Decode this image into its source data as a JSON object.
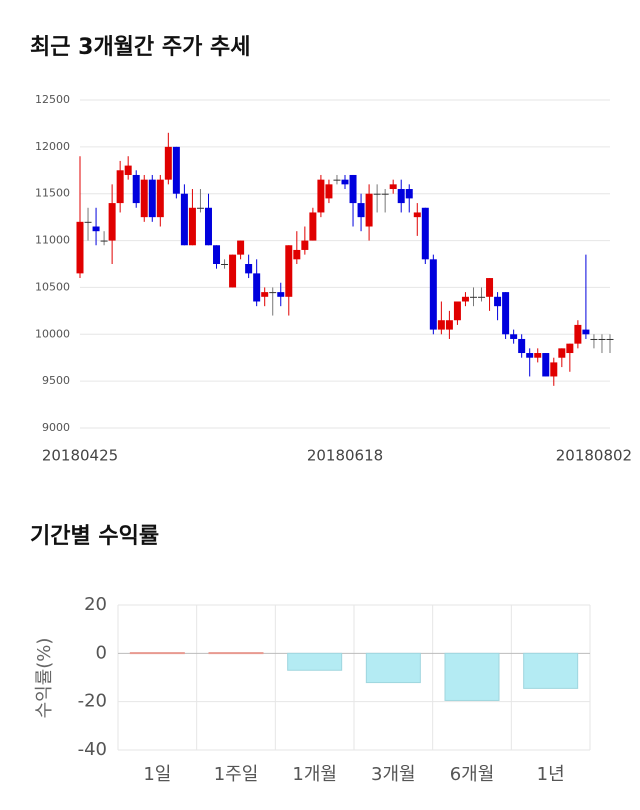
{
  "chart_data": [
    {
      "type": "candlestick",
      "title": "최근 3개월간 주가 추세",
      "categories": [
        "20180425",
        null,
        null,
        null,
        null,
        null,
        null,
        null,
        null,
        null,
        null,
        null,
        null,
        null,
        null,
        null,
        null,
        null,
        null,
        null,
        null,
        null,
        null,
        null,
        null,
        null,
        null,
        null,
        null,
        null,
        null,
        null,
        null,
        "20180618",
        null,
        null,
        null,
        null,
        null,
        null,
        null,
        null,
        null,
        null,
        null,
        null,
        null,
        null,
        null,
        null,
        null,
        null,
        null,
        null,
        null,
        null,
        null,
        null,
        null,
        null,
        null,
        null,
        null,
        null,
        "20180802",
        null,
        null
      ],
      "open": [
        10650,
        11200,
        11150,
        11000,
        11000,
        11400,
        11700,
        11700,
        11250,
        11650,
        11250,
        11650,
        12000,
        11500,
        10950,
        11350,
        11350,
        10950,
        10750,
        10500,
        10850,
        10750,
        10650,
        10400,
        10450,
        10450,
        10400,
        10800,
        10900,
        11000,
        11300,
        11450,
        11650,
        11650,
        11700,
        11400,
        11150,
        11500,
        11500,
        11550,
        11550,
        11550,
        11250,
        11350,
        10800,
        10050,
        10050,
        10150,
        10350,
        10400,
        10400,
        10400,
        10400,
        10450,
        10000,
        9950,
        9800,
        9750,
        9800,
        9550,
        9750,
        9800,
        9900,
        10050,
        9950,
        9950,
        9950
      ],
      "high": [
        11900,
        11350,
        11350,
        11100,
        11600,
        11850,
        11900,
        11750,
        11700,
        11700,
        11700,
        12150,
        12000,
        11600,
        11550,
        11550,
        11500,
        10950,
        10800,
        10850,
        11000,
        10850,
        10800,
        10500,
        10500,
        10550,
        10950,
        11100,
        11150,
        11350,
        11700,
        11650,
        11700,
        11700,
        11700,
        11500,
        11600,
        11600,
        11550,
        11650,
        11650,
        11600,
        11400,
        11350,
        10850,
        10350,
        10250,
        10350,
        10450,
        10500,
        10500,
        10600,
        10450,
        10450,
        10050,
        10000,
        9850,
        9850,
        9800,
        9750,
        9850,
        9900,
        10150,
        10850,
        10000,
        10000,
        10000
      ],
      "low": [
        10600,
        11000,
        10950,
        10950,
        10750,
        11300,
        11650,
        11350,
        11200,
        11200,
        11150,
        11600,
        11450,
        10950,
        10950,
        11300,
        10950,
        10700,
        10700,
        10500,
        10800,
        10600,
        10300,
        10300,
        10200,
        10300,
        10200,
        10750,
        10850,
        11000,
        11250,
        11400,
        11600,
        11550,
        11150,
        11100,
        11000,
        11300,
        11300,
        11500,
        11300,
        11300,
        11050,
        10750,
        10000,
        10000,
        9950,
        10100,
        10300,
        10300,
        10350,
        10250,
        10150,
        9950,
        9900,
        9750,
        9550,
        9700,
        9550,
        9450,
        9650,
        9600,
        9850,
        9950,
        9850,
        9800,
        9800
      ],
      "close": [
        11200,
        11200,
        11100,
        11000,
        11400,
        11750,
        11800,
        11400,
        11650,
        11250,
        11650,
        12000,
        11500,
        10950,
        11350,
        11350,
        10950,
        10750,
        10750,
        10850,
        11000,
        10650,
        10350,
        10450,
        10450,
        10400,
        10950,
        10900,
        11000,
        11300,
        11650,
        11600,
        11650,
        11600,
        11400,
        11250,
        11500,
        11500,
        11500,
        11600,
        11400,
        11450,
        11300,
        10800,
        10050,
        10150,
        10150,
        10350,
        10400,
        10400,
        10400,
        10600,
        10300,
        10000,
        9950,
        9800,
        9750,
        9800,
        9550,
        9700,
        9850,
        9900,
        10100,
        10000,
        9950,
        9950,
        9950
      ],
      "up_color": "#e00000",
      "down_color": "#0000dd",
      "flat_color": "#333333",
      "ylim": [
        9000,
        12500
      ],
      "yticks": [
        9000,
        9500,
        10000,
        10500,
        11000,
        11500,
        12000,
        12500
      ],
      "grid": true
    },
    {
      "type": "bar",
      "title": "기간별 수익률",
      "ylabel": "수익률(%)",
      "categories": [
        "1일",
        "1주일",
        "1개월",
        "3개월",
        "6개월",
        "1년"
      ],
      "values": [
        0.3,
        0.3,
        -7.0,
        -12.1,
        -19.5,
        -14.5
      ],
      "positive_color": "#f4aca4",
      "negative_color": "#b4ebf3",
      "ylim": [
        -40,
        20
      ],
      "yticks": [
        -40,
        -20,
        0,
        20
      ],
      "grid": true
    }
  ]
}
